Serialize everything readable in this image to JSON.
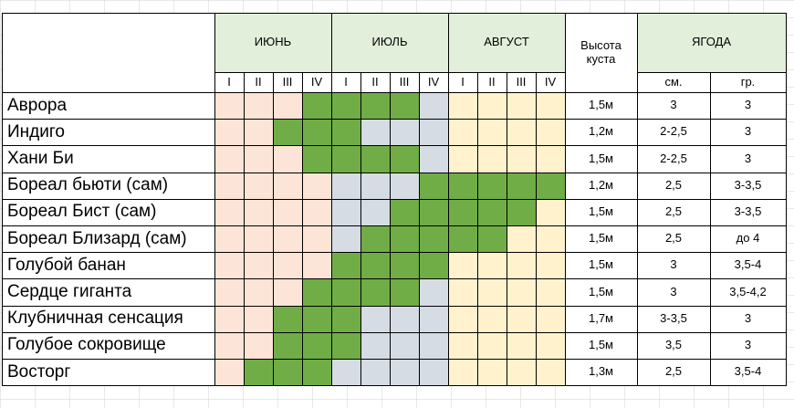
{
  "months": [
    "ИЮНЬ",
    "ИЮЛЬ",
    "АВГУСТ"
  ],
  "weeks": [
    "I",
    "II",
    "III",
    "IV"
  ],
  "height_header": "Высота\nкуста",
  "berry_header": "ЯГОДА",
  "berry_subheaders": [
    "см.",
    "гр."
  ],
  "colors": {
    "june": "#fce4d6",
    "july": "#d6dce4",
    "august": "#fff2cc",
    "ripe": "#70ad47",
    "header_green": "#e2efda",
    "grid": "#d9d9d9",
    "border": "#000000"
  },
  "varieties": [
    {
      "name": "Аврора",
      "height": "1,5м",
      "size": "3",
      "weight": "3",
      "ripe": [
        0,
        0,
        0,
        1,
        1,
        1,
        1,
        0,
        0,
        0,
        0,
        0
      ]
    },
    {
      "name": "Индиго",
      "height": "1,2м",
      "size": "2-2,5",
      "weight": "3",
      "ripe": [
        0,
        0,
        1,
        1,
        1,
        0,
        0,
        0,
        0,
        0,
        0,
        0
      ]
    },
    {
      "name": "Хани Би",
      "height": "1,5м",
      "size": "2-2,5",
      "weight": "3",
      "ripe": [
        0,
        0,
        0,
        1,
        1,
        1,
        1,
        0,
        0,
        0,
        0,
        0
      ]
    },
    {
      "name": "Бореал бьюти (сам)",
      "height": "1,2м",
      "size": "2,5",
      "weight": "3-3,5",
      "ripe": [
        0,
        0,
        0,
        0,
        0,
        0,
        0,
        1,
        1,
        1,
        1,
        1
      ]
    },
    {
      "name": "Бореал Бист (сам)",
      "height": "1,5м",
      "size": "2,5",
      "weight": "3-3,5",
      "ripe": [
        0,
        0,
        0,
        0,
        0,
        0,
        1,
        1,
        1,
        1,
        1,
        0
      ]
    },
    {
      "name": "Бореал Близард (сам)",
      "height": "1,5м",
      "size": "2,5",
      "weight": "до 4",
      "ripe": [
        0,
        0,
        0,
        0,
        0,
        1,
        1,
        1,
        1,
        1,
        0,
        0
      ]
    },
    {
      "name": "Голубой банан",
      "height": "1,5м",
      "size": "3",
      "weight": "3,5-4",
      "ripe": [
        0,
        0,
        0,
        0,
        1,
        1,
        1,
        1,
        0,
        0,
        0,
        0
      ]
    },
    {
      "name": "Сердце гиганта",
      "height": "1,5м",
      "size": "3",
      "weight": "3,5-4,2",
      "ripe": [
        0,
        0,
        0,
        1,
        1,
        1,
        1,
        0,
        0,
        0,
        0,
        0
      ]
    },
    {
      "name": "Клубничная сенсация",
      "height": "1,7м",
      "size": "3-3,5",
      "weight": "3",
      "ripe": [
        0,
        0,
        1,
        1,
        1,
        0,
        0,
        0,
        0,
        0,
        0,
        0
      ]
    },
    {
      "name": "Голубое сокровище",
      "height": "1,5м",
      "size": "3,5",
      "weight": "3",
      "ripe": [
        0,
        0,
        1,
        1,
        1,
        0,
        0,
        0,
        0,
        0,
        0,
        0
      ]
    },
    {
      "name": "Восторг",
      "height": "1,3м",
      "size": "2,5",
      "weight": "3,5-4",
      "ripe": [
        0,
        1,
        1,
        1,
        0,
        0,
        0,
        0,
        0,
        0,
        0,
        0
      ]
    }
  ]
}
